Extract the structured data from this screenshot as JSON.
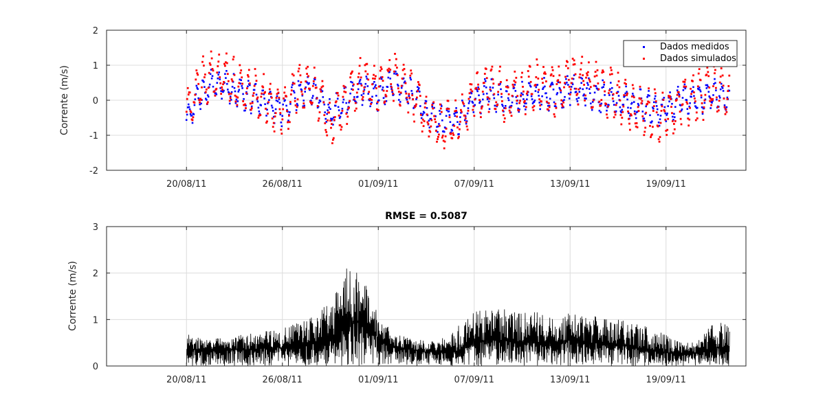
{
  "chart_data": [
    {
      "type": "scatter",
      "ylabel": "Corrente (m/s)",
      "ylim": [
        -2,
        2
      ],
      "yticks": [
        -2,
        -1,
        0,
        1,
        2
      ],
      "ytick_labels": [
        "-2",
        "-1",
        "0",
        "1",
        "2"
      ],
      "xlim": [
        "2011-08-15",
        "2011-09-24"
      ],
      "xticks": [
        "2011-08-20",
        "2011-08-26",
        "2011-09-01",
        "2011-09-07",
        "2011-09-13",
        "2011-09-19"
      ],
      "xtick_labels": [
        "20/08/11",
        "26/08/11",
        "01/09/11",
        "07/09/11",
        "13/09/11",
        "19/09/11"
      ],
      "grid": true,
      "legend_position": "top-right",
      "series": [
        {
          "name": "Dados medidos",
          "color": "#0000ff",
          "marker": "point",
          "x": [
            "2011-08-20",
            "2011-08-21",
            "2011-08-22",
            "2011-08-23",
            "2011-08-24",
            "2011-08-25",
            "2011-08-26",
            "2011-08-27",
            "2011-08-28",
            "2011-08-29",
            "2011-08-30",
            "2011-08-31",
            "2011-09-01",
            "2011-09-02",
            "2011-09-03",
            "2011-09-04",
            "2011-09-05",
            "2011-09-06",
            "2011-09-07",
            "2011-09-08",
            "2011-09-09",
            "2011-09-10",
            "2011-09-11",
            "2011-09-12",
            "2011-09-13",
            "2011-09-14",
            "2011-09-15",
            "2011-09-16",
            "2011-09-17",
            "2011-09-18",
            "2011-09-19",
            "2011-09-20",
            "2011-09-21",
            "2011-09-22",
            "2011-09-23"
          ],
          "y": [
            -0.5,
            0.3,
            0.5,
            0.3,
            0.1,
            -0.1,
            -0.3,
            0.2,
            0.3,
            -0.4,
            0.0,
            0.3,
            0.1,
            0.5,
            0.2,
            -0.3,
            -0.6,
            -0.6,
            0.0,
            0.2,
            0.0,
            0.1,
            0.2,
            0.1,
            0.3,
            0.2,
            0.1,
            0.0,
            -0.1,
            -0.2,
            -0.3,
            0.0,
            0.0,
            0.2,
            0.1
          ]
        },
        {
          "name": "Dados simulados",
          "color": "#ff0000",
          "marker": "point",
          "x": [
            "2011-08-20",
            "2011-08-21",
            "2011-08-22",
            "2011-08-23",
            "2011-08-24",
            "2011-08-25",
            "2011-08-26",
            "2011-08-27",
            "2011-08-28",
            "2011-08-29",
            "2011-08-30",
            "2011-08-31",
            "2011-09-01",
            "2011-09-02",
            "2011-09-03",
            "2011-09-04",
            "2011-09-05",
            "2011-09-06",
            "2011-09-07",
            "2011-09-08",
            "2011-09-09",
            "2011-09-10",
            "2011-09-11",
            "2011-09-12",
            "2011-09-13",
            "2011-09-14",
            "2011-09-15",
            "2011-09-16",
            "2011-09-17",
            "2011-09-18",
            "2011-09-19",
            "2011-09-20",
            "2011-09-21",
            "2011-09-22",
            "2011-09-23"
          ],
          "y": [
            -0.4,
            0.5,
            0.8,
            0.5,
            0.2,
            0.0,
            -0.4,
            0.3,
            0.4,
            -0.6,
            0.0,
            0.6,
            0.2,
            0.7,
            0.3,
            -0.4,
            -0.8,
            -0.7,
            0.1,
            0.4,
            0.1,
            0.3,
            0.5,
            0.2,
            0.6,
            0.5,
            0.3,
            0.1,
            -0.2,
            -0.4,
            -0.5,
            0.0,
            0.1,
            0.4,
            0.2
          ]
        }
      ]
    },
    {
      "type": "line",
      "title": "RMSE = 0.5087",
      "ylabel": "Corrente (m/s)",
      "ylim": [
        0,
        3
      ],
      "yticks": [
        0,
        1,
        2,
        3
      ],
      "ytick_labels": [
        "0",
        "1",
        "2",
        "3"
      ],
      "xlim": [
        "2011-08-15",
        "2011-09-24"
      ],
      "xticks": [
        "2011-08-20",
        "2011-08-26",
        "2011-09-01",
        "2011-09-07",
        "2011-09-13",
        "2011-09-19"
      ],
      "xtick_labels": [
        "20/08/11",
        "26/08/11",
        "01/09/11",
        "07/09/11",
        "13/09/11",
        "19/09/11"
      ],
      "grid": true,
      "series": [
        {
          "color": "#000000",
          "x": [
            "2011-08-20",
            "2011-08-21",
            "2011-08-22",
            "2011-08-23",
            "2011-08-24",
            "2011-08-25",
            "2011-08-26",
            "2011-08-27",
            "2011-08-28",
            "2011-08-29",
            "2011-08-30",
            "2011-08-31",
            "2011-09-01",
            "2011-09-02",
            "2011-09-03",
            "2011-09-04",
            "2011-09-05",
            "2011-09-06",
            "2011-09-07",
            "2011-09-08",
            "2011-09-09",
            "2011-09-10",
            "2011-09-11",
            "2011-09-12",
            "2011-09-13",
            "2011-09-14",
            "2011-09-15",
            "2011-09-16",
            "2011-09-17",
            "2011-09-18",
            "2011-09-19",
            "2011-09-20",
            "2011-09-21",
            "2011-09-22",
            "2011-09-23"
          ],
          "y": [
            0.35,
            0.35,
            0.35,
            0.35,
            0.35,
            0.4,
            0.4,
            0.45,
            0.5,
            0.55,
            0.9,
            1.0,
            0.6,
            0.4,
            0.35,
            0.3,
            0.3,
            0.3,
            0.5,
            0.55,
            0.55,
            0.5,
            0.5,
            0.5,
            0.55,
            0.5,
            0.5,
            0.45,
            0.4,
            0.35,
            0.3,
            0.25,
            0.3,
            0.4,
            0.4
          ],
          "y_max": [
            0.7,
            0.6,
            0.6,
            0.65,
            0.7,
            0.75,
            0.8,
            0.95,
            1.1,
            1.4,
            2.2,
            1.95,
            1.1,
            0.7,
            0.6,
            0.55,
            0.6,
            0.9,
            1.25,
            1.2,
            1.25,
            1.15,
            1.2,
            1.1,
            1.15,
            1.1,
            1.05,
            1.0,
            0.95,
            0.85,
            0.7,
            0.5,
            0.55,
            0.95,
            0.9
          ]
        }
      ]
    }
  ]
}
